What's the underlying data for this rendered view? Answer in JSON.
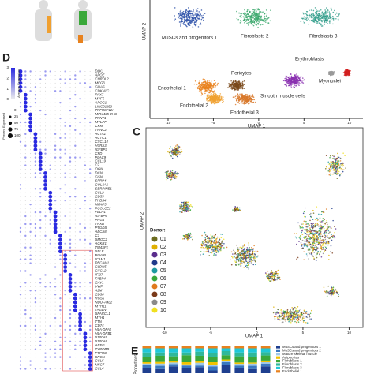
{
  "panel_labels": {
    "dot_plot": "D",
    "donor_umap": "C",
    "proportions": "E"
  },
  "umap_clusters": {
    "xlabel": "UMAP 1",
    "ylabel": "UMAP 2",
    "xlim": [
      -12,
      11.5
    ],
    "xticks": [
      -10,
      -5,
      0,
      5,
      10
    ],
    "clusters": [
      {
        "name": "MuSCs and progenitors 1",
        "color": "#2b4fa8"
      },
      {
        "name": "Fibroblasts 2",
        "color": "#3aa86b"
      },
      {
        "name": "Fibroblasts 3",
        "color": "#2f9c8a"
      },
      {
        "name": "Endothelial 1",
        "color": "#e8821e"
      },
      {
        "name": "Pericytes",
        "color": "#7a4a1c"
      },
      {
        "name": "Erythroblasts",
        "color": "#9a9a9a"
      },
      {
        "name": "Myonuclei",
        "color": "#d22020"
      },
      {
        "name": "Endothelial 2",
        "color": "#f0a030"
      },
      {
        "name": "Endothelial 3",
        "color": "#d8782a"
      },
      {
        "name": "Smooth muscle cells",
        "color": "#8a2fb0"
      }
    ]
  },
  "dot_plot": {
    "avg_title": "Average Expression",
    "avg_ticks": [
      3,
      2,
      1,
      0
    ],
    "pct_title": "Percent Expressed",
    "pct_ticks": [
      0,
      25,
      50,
      75,
      100
    ],
    "genes": [
      "DLK1",
      "APOE",
      "CHRDL2",
      "MEG3",
      "GNAS",
      "CDKN1C",
      "PAX7",
      "MYF5",
      "APOC1",
      "LINC01152",
      "TNFRSF12A",
      "MIR4435-2HG",
      "TNNT1",
      "MYLPF",
      "CKM",
      "TNNC2",
      "ACTA1",
      "ACTC1",
      "CXCL14",
      "HTRA3",
      "IGFBP3",
      "CFD",
      "PLAC9",
      "CCL19",
      "C7",
      "OGN",
      "DCN",
      "GSN",
      "SFRP4",
      "COL3A1",
      "SERPINE1",
      "CCL2",
      "CD55",
      "THBS4",
      "MFAP5",
      "PCOLCE2",
      "FBLN1",
      "IGFBP6",
      "PRG4",
      "TNXB",
      "PTGDS",
      "ABCA8",
      "C3",
      "SMOC2",
      "ACKR1",
      "TM4SF1",
      "SELE",
      "PLVAP",
      "ICAM1",
      "PECAM1",
      "CLDN5",
      "CXCL2",
      "IFI27",
      "FABP4",
      "CAV1",
      "VWF",
      "A2M",
      "CD36",
      "RGS5",
      "NDUFA4L2",
      "MYH11",
      "TAGLN",
      "SPARCL1",
      "MYH1",
      "TTN",
      "CD74",
      "HLA-DPA1",
      "HLA-DRB1",
      "S100A9",
      "S100A8",
      "AREG",
      "TYROBP",
      "PTPRC",
      "SRGN",
      "CCL5",
      "NKG7",
      "CCL4"
    ]
  },
  "donor_umap": {
    "xlabel": "UMAP 1",
    "ylabel": "UMAP 2",
    "xlim": [
      -12,
      11.5
    ],
    "xticks": [
      -10,
      -5,
      0,
      5,
      10
    ],
    "legend_title": "Donor:",
    "donors": [
      {
        "name": "01",
        "color": "#6b6b1e"
      },
      {
        "name": "02",
        "color": "#e0b000"
      },
      {
        "name": "03",
        "color": "#5a2d8c"
      },
      {
        "name": "04",
        "color": "#1f3a8a"
      },
      {
        "name": "05",
        "color": "#1e9aa0"
      },
      {
        "name": "06",
        "color": "#3aa83a"
      },
      {
        "name": "07",
        "color": "#e07a1e"
      },
      {
        "name": "08",
        "color": "#7a3a1a"
      },
      {
        "name": "09",
        "color": "#8a8a8a"
      },
      {
        "name": "10",
        "color": "#f0e020"
      }
    ]
  },
  "proportions": {
    "ylabel": "Proportions",
    "ylim": [
      0,
      100
    ],
    "series": [
      {
        "name": "MuSCs and progenitors 1",
        "color": "#1f3f8f",
        "values": [
          20,
          15,
          25,
          18,
          22,
          10,
          30,
          20,
          15,
          25
        ]
      },
      {
        "name": "MuSCs and progenitors 2",
        "color": "#3a78c0",
        "values": [
          10,
          12,
          8,
          10,
          6,
          15,
          10,
          8,
          12,
          10
        ]
      },
      {
        "name": "Mature skeletal muscle",
        "color": "#9ec8e8",
        "values": [
          5,
          8,
          6,
          4,
          10,
          5,
          4,
          6,
          8,
          5
        ]
      },
      {
        "name": "Adipocytes",
        "color": "#f2c200",
        "values": [
          5,
          6,
          4,
          8,
          5,
          10,
          6,
          5,
          4,
          6
        ]
      },
      {
        "name": "Fibroblasts 1",
        "color": "#3aa83a",
        "values": [
          20,
          22,
          18,
          25,
          20,
          20,
          15,
          22,
          20,
          18
        ]
      },
      {
        "name": "Fibroblasts 2",
        "color": "#2fb89a",
        "values": [
          15,
          12,
          14,
          10,
          15,
          12,
          15,
          14,
          16,
          12
        ]
      },
      {
        "name": "Fibroblasts 3",
        "color": "#1ec8d8",
        "values": [
          15,
          15,
          15,
          15,
          12,
          18,
          10,
          15,
          15,
          14
        ]
      },
      {
        "name": "Endothelial 1",
        "color": "#e8821e",
        "values": [
          10,
          10,
          10,
          10,
          10,
          10,
          10,
          10,
          10,
          10
        ]
      }
    ]
  }
}
